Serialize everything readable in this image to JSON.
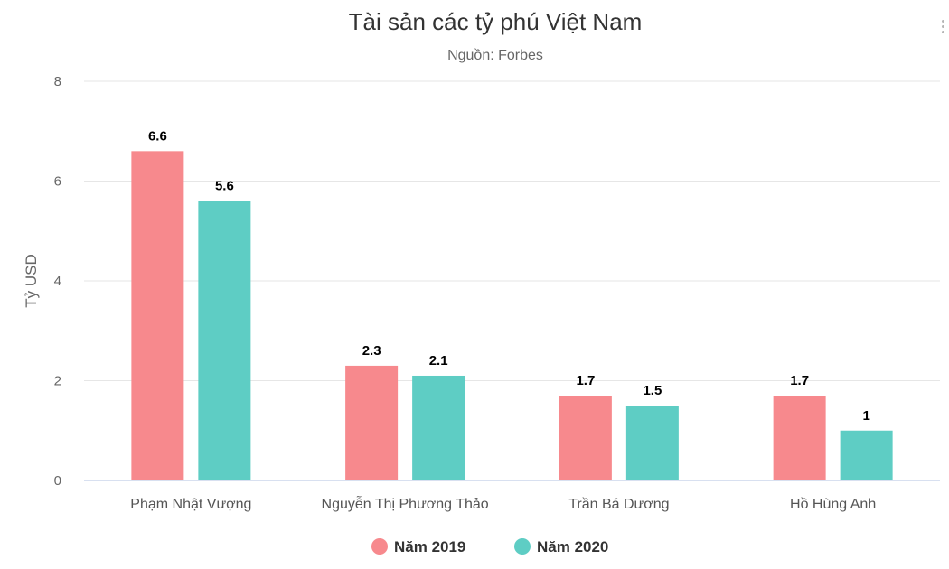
{
  "chart_data": {
    "type": "bar",
    "title": "Tài sản các tỷ phú Việt Nam",
    "subtitle": "Nguồn: Forbes",
    "xlabel": "",
    "ylabel": "Tỷ USD",
    "ylim": [
      0,
      8
    ],
    "yticks": [
      "0",
      "2",
      "4",
      "6",
      "8"
    ],
    "grid": true,
    "legend_position": "bottom-center",
    "categories": [
      "Phạm Nhật Vượng",
      "Nguyễn Thị Phương Thảo",
      "Trần Bá Dương",
      "Hồ Hùng Anh"
    ],
    "series": [
      {
        "name": "Năm 2019",
        "color": "#f7898d",
        "values": [
          6.6,
          2.3,
          1.7,
          1.7
        ],
        "labels": [
          "6.6",
          "2.3",
          "1.7",
          "1.7"
        ]
      },
      {
        "name": "Năm 2020",
        "color": "#5ecdc4",
        "values": [
          5.6,
          2.1,
          1.5,
          1
        ],
        "labels": [
          "5.6",
          "2.1",
          "1.5",
          "1"
        ]
      }
    ],
    "gridline_color": "#e6e6e6",
    "axis_color": "#ccd6eb"
  }
}
